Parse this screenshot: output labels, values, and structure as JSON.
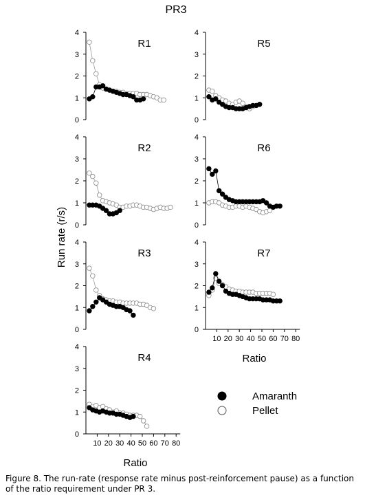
{
  "figure": {
    "title": "PR3",
    "ylabel": "Run rate (r/s)",
    "xlabel": "Ratio",
    "caption": "Figure 8. The run-rate (response rate minus post-reinforcement pause) as a function of the ratio requirement under PR 3."
  },
  "legend": {
    "items": [
      {
        "label": "Amaranth",
        "marker": "filled-circle",
        "color": "#000000"
      },
      {
        "label": "Pellet",
        "marker": "open-circle",
        "color": "#ffffff"
      }
    ]
  },
  "chart_data": [
    {
      "type": "line",
      "title": "R1",
      "ylim": [
        0,
        4
      ],
      "yticks": [
        "0",
        "1",
        "2",
        "3",
        "4"
      ],
      "series": [
        {
          "name": "Amaranth",
          "x": [
            3,
            6,
            9,
            12,
            15,
            18,
            21,
            24,
            27,
            30,
            33,
            36,
            39,
            42,
            45,
            48,
            51
          ],
          "y": [
            0.95,
            1.05,
            1.5,
            1.5,
            1.55,
            1.4,
            1.35,
            1.3,
            1.25,
            1.2,
            1.15,
            1.15,
            1.1,
            1.05,
            0.9,
            0.9,
            0.95
          ]
        },
        {
          "name": "Pellet",
          "x": [
            3,
            6,
            9,
            12,
            15,
            18,
            21,
            24,
            27,
            30,
            33,
            36,
            39,
            42,
            45,
            48,
            51,
            54,
            57,
            60,
            63,
            66,
            69
          ],
          "y": [
            3.55,
            2.7,
            2.1,
            1.6,
            1.45,
            1.4,
            1.35,
            1.3,
            1.3,
            1.25,
            1.25,
            1.2,
            1.2,
            1.2,
            1.2,
            1.15,
            1.15,
            1.15,
            1.1,
            1.05,
            1.0,
            0.9,
            0.9
          ]
        }
      ]
    },
    {
      "type": "line",
      "title": "R2",
      "ylim": [
        0,
        4
      ],
      "yticks": [
        "0",
        "1",
        "2",
        "3",
        "4"
      ],
      "series": [
        {
          "name": "Amaranth",
          "x": [
            3,
            6,
            9,
            12,
            15,
            18,
            21,
            24,
            27,
            30
          ],
          "y": [
            0.9,
            0.9,
            0.9,
            0.85,
            0.75,
            0.65,
            0.5,
            0.5,
            0.55,
            0.65
          ]
        },
        {
          "name": "Pellet",
          "x": [
            3,
            6,
            9,
            12,
            15,
            18,
            21,
            24,
            27,
            30,
            33,
            36,
            39,
            42,
            45,
            48,
            51,
            54,
            57,
            60,
            63,
            66,
            69,
            72,
            75
          ],
          "y": [
            2.35,
            2.2,
            1.9,
            1.35,
            1.1,
            1.05,
            1.0,
            0.95,
            0.9,
            0.8,
            0.8,
            0.85,
            0.85,
            0.9,
            0.9,
            0.85,
            0.8,
            0.8,
            0.75,
            0.7,
            0.75,
            0.8,
            0.75,
            0.75,
            0.8
          ]
        }
      ]
    },
    {
      "type": "line",
      "title": "R3",
      "ylim": [
        0,
        4
      ],
      "yticks": [
        "0",
        "1",
        "2",
        "3",
        "4"
      ],
      "series": [
        {
          "name": "Amaranth",
          "x": [
            3,
            6,
            9,
            12,
            15,
            18,
            21,
            24,
            27,
            30,
            33,
            36,
            39,
            42
          ],
          "y": [
            0.85,
            1.05,
            1.25,
            1.45,
            1.35,
            1.25,
            1.15,
            1.1,
            1.05,
            1.05,
            1.0,
            0.9,
            0.85,
            0.65
          ]
        },
        {
          "name": "Pellet",
          "x": [
            3,
            6,
            9,
            12,
            15,
            18,
            21,
            24,
            27,
            30,
            33,
            36,
            39,
            42,
            45,
            48,
            51,
            54,
            57,
            60
          ],
          "y": [
            2.8,
            2.45,
            1.8,
            1.55,
            1.4,
            1.35,
            1.3,
            1.3,
            1.25,
            1.25,
            1.2,
            1.2,
            1.2,
            1.2,
            1.2,
            1.15,
            1.15,
            1.1,
            1.0,
            0.95
          ]
        }
      ]
    },
    {
      "type": "line",
      "title": "R4",
      "ylim": [
        0,
        4
      ],
      "yticks": [
        "0",
        "1",
        "2",
        "3",
        "4"
      ],
      "series": [
        {
          "name": "Amaranth",
          "x": [
            3,
            6,
            9,
            12,
            15,
            18,
            21,
            24,
            27,
            30,
            33,
            36,
            39,
            42
          ],
          "y": [
            1.2,
            1.1,
            1.05,
            1.0,
            1.05,
            1.0,
            0.95,
            0.95,
            0.9,
            0.9,
            0.85,
            0.8,
            0.75,
            0.8
          ]
        },
        {
          "name": "Pellet",
          "x": [
            3,
            6,
            9,
            12,
            15,
            18,
            21,
            24,
            27,
            30,
            33,
            36,
            39,
            42,
            45,
            48,
            51,
            54
          ],
          "y": [
            1.35,
            1.25,
            1.3,
            1.2,
            1.25,
            1.15,
            1.1,
            1.0,
            1.05,
            0.95,
            0.95,
            0.9,
            0.85,
            0.85,
            0.85,
            0.8,
            0.6,
            0.35
          ]
        }
      ]
    },
    {
      "type": "line",
      "title": "R5",
      "ylim": [
        0,
        4
      ],
      "yticks": [
        "0",
        "1",
        "2",
        "3",
        "4"
      ],
      "series": [
        {
          "name": "Amaranth",
          "x": [
            3,
            6,
            9,
            12,
            15,
            18,
            21,
            24,
            27,
            30,
            33,
            36,
            39,
            42,
            45,
            48
          ],
          "y": [
            1.05,
            0.9,
            0.95,
            0.8,
            0.7,
            0.6,
            0.55,
            0.55,
            0.5,
            0.5,
            0.5,
            0.55,
            0.6,
            0.65,
            0.65,
            0.7
          ]
        },
        {
          "name": "Pellet",
          "x": [
            3,
            6,
            9,
            12,
            15,
            18,
            21,
            24,
            27,
            30,
            33,
            36,
            39,
            42,
            45,
            48
          ],
          "y": [
            1.35,
            1.3,
            1.1,
            1.0,
            0.9,
            0.85,
            0.75,
            0.7,
            0.8,
            0.85,
            0.75,
            0.6,
            0.5,
            0.6,
            0.65,
            0.7
          ]
        }
      ]
    },
    {
      "type": "line",
      "title": "R6",
      "ylim": [
        0,
        4
      ],
      "yticks": [
        "0",
        "1",
        "2",
        "3",
        "4"
      ],
      "series": [
        {
          "name": "Amaranth",
          "x": [
            3,
            6,
            9,
            12,
            15,
            18,
            21,
            24,
            27,
            30,
            33,
            36,
            39,
            42,
            45,
            48,
            51,
            54,
            57,
            60,
            63,
            66
          ],
          "y": [
            2.55,
            2.3,
            2.45,
            1.55,
            1.4,
            1.25,
            1.15,
            1.1,
            1.05,
            1.05,
            1.05,
            1.05,
            1.05,
            1.05,
            1.05,
            1.05,
            1.1,
            1.0,
            0.85,
            0.8,
            0.85,
            0.85
          ]
        },
        {
          "name": "Pellet",
          "x": [
            3,
            6,
            9,
            12,
            15,
            18,
            21,
            24,
            27,
            30,
            33,
            36,
            39,
            42,
            45,
            48,
            51,
            54,
            57
          ],
          "y": [
            1.0,
            1.05,
            1.05,
            1.0,
            0.9,
            0.85,
            0.8,
            0.8,
            0.85,
            0.85,
            0.8,
            0.85,
            0.8,
            0.75,
            0.7,
            0.6,
            0.55,
            0.6,
            0.65
          ]
        }
      ]
    },
    {
      "type": "line",
      "title": "R7",
      "ylim": [
        0,
        4
      ],
      "yticks": [
        "0",
        "1",
        "2",
        "3",
        "4"
      ],
      "xticks": [
        "10",
        "20",
        "30",
        "40",
        "50",
        "60",
        "70",
        "80"
      ],
      "series": [
        {
          "name": "Amaranth",
          "x": [
            3,
            6,
            9,
            12,
            15,
            18,
            21,
            24,
            27,
            30,
            33,
            36,
            39,
            42,
            45,
            48,
            51,
            54,
            57,
            60,
            63,
            66
          ],
          "y": [
            1.7,
            1.9,
            2.55,
            2.2,
            2.0,
            1.75,
            1.65,
            1.6,
            1.6,
            1.55,
            1.5,
            1.45,
            1.4,
            1.4,
            1.4,
            1.4,
            1.35,
            1.35,
            1.35,
            1.3,
            1.3,
            1.3
          ]
        },
        {
          "name": "Pellet",
          "x": [
            3,
            6,
            9,
            12,
            15,
            18,
            21,
            24,
            27,
            30,
            33,
            36,
            39,
            42,
            45,
            48,
            51,
            54,
            57,
            60
          ],
          "y": [
            1.55,
            1.8,
            2.35,
            2.1,
            2.05,
            1.95,
            1.85,
            1.8,
            1.75,
            1.75,
            1.7,
            1.7,
            1.7,
            1.7,
            1.65,
            1.65,
            1.65,
            1.65,
            1.65,
            1.6
          ]
        }
      ]
    }
  ],
  "xticks": [
    "10",
    "20",
    "30",
    "40",
    "50",
    "60",
    "70",
    "80"
  ]
}
